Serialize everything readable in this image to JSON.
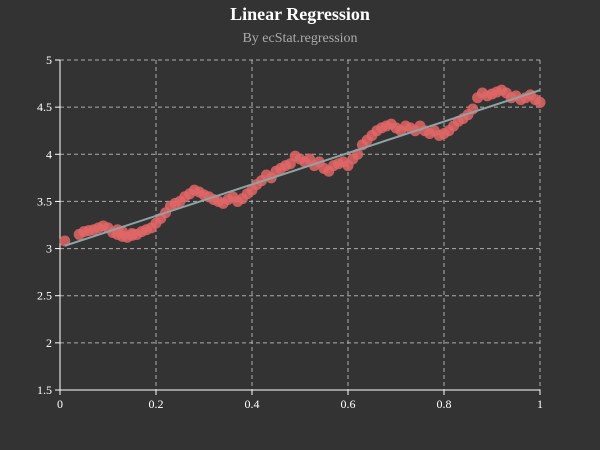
{
  "title": "Linear Regression",
  "subtitle": "By ecStat.regression",
  "colors": {
    "background": "#333333",
    "points": "#e06666",
    "regression_line": "#8fa3a6",
    "grid": "#cccccc",
    "text": "#ffffff",
    "subtitle": "#aaaaaa"
  },
  "chart_data": {
    "type": "scatter",
    "title": "Linear Regression",
    "subtitle": "By ecStat.regression",
    "xlim": [
      0,
      1
    ],
    "ylim": [
      1.5,
      5
    ],
    "x_ticks": [
      "0",
      "0.2",
      "0.4",
      "0.6",
      "0.8",
      "1"
    ],
    "y_ticks": [
      "1.5",
      "2",
      "2.5",
      "3",
      "3.5",
      "4",
      "4.5",
      "5"
    ],
    "grid": true,
    "grid_style": "dashed",
    "series": [
      {
        "type": "scatter",
        "x": [
          0.01,
          0.04,
          0.05,
          0.06,
          0.07,
          0.08,
          0.09,
          0.1,
          0.11,
          0.12,
          0.12,
          0.13,
          0.13,
          0.14,
          0.15,
          0.15,
          0.16,
          0.17,
          0.18,
          0.19,
          0.2,
          0.21,
          0.22,
          0.23,
          0.24,
          0.25,
          0.26,
          0.27,
          0.28,
          0.29,
          0.3,
          0.31,
          0.32,
          0.33,
          0.34,
          0.35,
          0.36,
          0.37,
          0.38,
          0.39,
          0.4,
          0.41,
          0.42,
          0.43,
          0.44,
          0.45,
          0.46,
          0.47,
          0.48,
          0.49,
          0.5,
          0.51,
          0.52,
          0.53,
          0.54,
          0.55,
          0.56,
          0.57,
          0.58,
          0.59,
          0.6,
          0.61,
          0.62,
          0.63,
          0.64,
          0.65,
          0.66,
          0.67,
          0.68,
          0.69,
          0.7,
          0.71,
          0.72,
          0.73,
          0.74,
          0.75,
          0.76,
          0.77,
          0.78,
          0.79,
          0.8,
          0.81,
          0.82,
          0.83,
          0.84,
          0.85,
          0.86,
          0.87,
          0.88,
          0.89,
          0.9,
          0.91,
          0.92,
          0.93,
          0.94,
          0.95,
          0.96,
          0.97,
          0.98,
          0.99,
          1.0
        ],
        "y": [
          3.08,
          3.15,
          3.18,
          3.19,
          3.2,
          3.22,
          3.24,
          3.22,
          3.17,
          3.15,
          3.2,
          3.13,
          3.18,
          3.12,
          3.16,
          3.14,
          3.15,
          3.18,
          3.2,
          3.22,
          3.27,
          3.32,
          3.38,
          3.45,
          3.48,
          3.5,
          3.55,
          3.58,
          3.62,
          3.6,
          3.57,
          3.55,
          3.52,
          3.5,
          3.48,
          3.52,
          3.55,
          3.5,
          3.53,
          3.58,
          3.62,
          3.68,
          3.72,
          3.78,
          3.75,
          3.82,
          3.85,
          3.88,
          3.9,
          3.98,
          3.95,
          3.92,
          3.95,
          3.88,
          3.92,
          3.85,
          3.82,
          3.88,
          3.9,
          3.92,
          3.88,
          3.95,
          4.0,
          4.1,
          4.15,
          4.2,
          4.25,
          4.28,
          4.3,
          4.32,
          4.28,
          4.25,
          4.3,
          4.28,
          4.25,
          4.3,
          4.25,
          4.22,
          4.25,
          4.2,
          4.22,
          4.25,
          4.3,
          4.35,
          4.38,
          4.42,
          4.48,
          4.6,
          4.65,
          4.62,
          4.64,
          4.66,
          4.68,
          4.65,
          4.6,
          4.62,
          4.58,
          4.6,
          4.63,
          4.58,
          4.55
        ]
      },
      {
        "type": "line",
        "x": [
          0.01,
          1.0
        ],
        "y": [
          3.03,
          4.68
        ]
      }
    ]
  }
}
